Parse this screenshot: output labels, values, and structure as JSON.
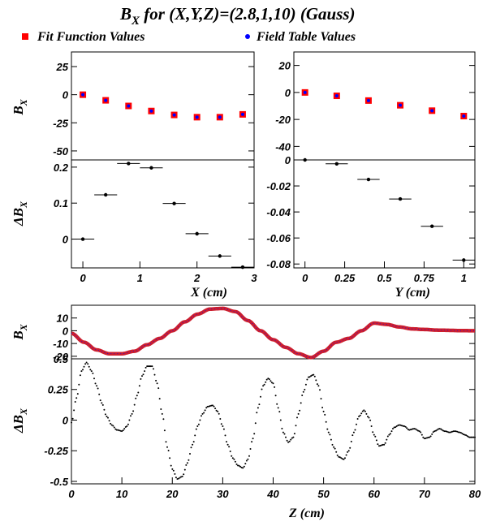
{
  "title": {
    "main": "B",
    "sub": "X",
    "rest": " for (X,Y,Z)=(2.8,1,10)  (Gauss)"
  },
  "legend": {
    "fit": "Fit Function Values",
    "table": "Field Table Values"
  },
  "colors": {
    "fit": "#ff0000",
    "table": "#0000ff",
    "curve": "#cc1f2f",
    "residual": "#000000"
  },
  "axis_text": {
    "bx": "B",
    "bx_sub": "X",
    "dbx": "ΔB",
    "dbx_sub": "X",
    "x": "X (cm)",
    "y": "Y (cm)",
    "z": "Z (cm)"
  },
  "chart_data": [
    {
      "panel": "x-scan field",
      "type": "scatter",
      "x": [
        0,
        0.4,
        0.8,
        1.2,
        1.6,
        2.0,
        2.4,
        2.8
      ],
      "series": [
        {
          "name": "Fit Function Values",
          "values": [
            0,
            -5,
            -10,
            -14.5,
            -18,
            -20,
            -20,
            -17.5
          ]
        },
        {
          "name": "Field Table Values",
          "values": [
            0,
            -5,
            -10,
            -14.5,
            -18,
            -20,
            -20,
            -17.5
          ]
        }
      ],
      "xlim": [
        -0.2,
        3.0
      ],
      "ylim": [
        -58,
        38
      ],
      "yticks": [
        "25",
        "0",
        "-25",
        "-50"
      ]
    },
    {
      "panel": "x-scan residual",
      "type": "scatter",
      "x": [
        0,
        0.4,
        0.8,
        1.2,
        1.6,
        2.0,
        2.4,
        2.8
      ],
      "values": [
        0,
        0.123,
        0.21,
        0.198,
        0.099,
        0.015,
        -0.047,
        -0.078
      ],
      "xerr": 0.2,
      "xlim": [
        -0.2,
        3.0
      ],
      "ylim": [
        -0.08,
        0.22
      ],
      "xticks": [
        "0",
        "1",
        "2",
        "3"
      ],
      "yticks": [
        "0.2",
        "0.1",
        "0"
      ]
    },
    {
      "panel": "y-scan field",
      "type": "scatter",
      "x": [
        0,
        0.2,
        0.4,
        0.6,
        0.8,
        1.0
      ],
      "series": [
        {
          "name": "Fit Function Values",
          "values": [
            0,
            -2.5,
            -6,
            -9.5,
            -13.5,
            -17.5
          ]
        },
        {
          "name": "Field Table Values",
          "values": [
            0,
            -2.5,
            -6,
            -9.5,
            -13.5,
            -17.5
          ]
        }
      ],
      "xlim": [
        -0.07,
        1.07
      ],
      "ylim": [
        -50,
        30
      ],
      "yticks": [
        "20",
        "0",
        "-20",
        "-40"
      ]
    },
    {
      "panel": "y-scan residual",
      "type": "scatter",
      "x": [
        0,
        0.2,
        0.4,
        0.6,
        0.8,
        1.0
      ],
      "values": [
        0,
        -0.003,
        -0.015,
        -0.03,
        -0.051,
        -0.077
      ],
      "xerr": 0.07,
      "xlim": [
        -0.07,
        1.07
      ],
      "ylim": [
        -0.083,
        0.0
      ],
      "xticks": [
        "0",
        "0.25",
        "0.5",
        "0.75",
        "1"
      ],
      "yticks": [
        "0",
        "-0.02",
        "-0.04",
        "-0.06",
        "-0.08"
      ]
    },
    {
      "panel": "z-scan field",
      "type": "line",
      "x": [
        0,
        2.5,
        5,
        7.5,
        10,
        12.5,
        15,
        17.5,
        20,
        22.5,
        25,
        27.5,
        30,
        32.5,
        35,
        37.5,
        40,
        42.5,
        45,
        47.5,
        50,
        52.5,
        55,
        57.5,
        60,
        62.5,
        65,
        67.5,
        70,
        72.5,
        75,
        77.5,
        80
      ],
      "values": [
        -2,
        -9,
        -15,
        -18,
        -18,
        -16,
        -11,
        -6,
        0,
        7,
        13,
        17,
        17.5,
        15,
        8,
        0,
        -7,
        -13,
        -18,
        -21,
        -16,
        -9,
        -6,
        0,
        6,
        5,
        3,
        1.5,
        1,
        0.5,
        0.3,
        0.1,
        0
      ],
      "xlim": [
        0,
        80
      ],
      "ylim": [
        -22,
        20
      ],
      "yticks": [
        "10",
        "0",
        "-10",
        "-20"
      ]
    },
    {
      "panel": "z-scan residual",
      "type": "scatter",
      "x": [
        0,
        1,
        2,
        3,
        4,
        5,
        6,
        7,
        8,
        9,
        10,
        11,
        12,
        13,
        14,
        15,
        16,
        17,
        18,
        19,
        20,
        21,
        22,
        23,
        24,
        25,
        26,
        27,
        28,
        29,
        30,
        31,
        32,
        33,
        34,
        35,
        36,
        37,
        38,
        39,
        40,
        41,
        42,
        43,
        44,
        45,
        46,
        47,
        48,
        49,
        50,
        51,
        52,
        53,
        54,
        55,
        56,
        57,
        58,
        59,
        60,
        61,
        62,
        63,
        64,
        65,
        66,
        67,
        68,
        69,
        70,
        71,
        72,
        73,
        74,
        75,
        76,
        77,
        78,
        79,
        80
      ],
      "values": [
        -0.02,
        0.18,
        0.4,
        0.47,
        0.4,
        0.28,
        0.14,
        0.03,
        -0.04,
        -0.08,
        -0.09,
        -0.05,
        0.05,
        0.2,
        0.36,
        0.44,
        0.44,
        0.3,
        0.05,
        -0.22,
        -0.4,
        -0.48,
        -0.46,
        -0.35,
        -0.2,
        -0.05,
        0.05,
        0.11,
        0.12,
        0.07,
        -0.05,
        -0.2,
        -0.31,
        -0.37,
        -0.39,
        -0.32,
        -0.15,
        0.1,
        0.28,
        0.34,
        0.3,
        0.1,
        -0.1,
        -0.18,
        -0.14,
        0.05,
        0.23,
        0.35,
        0.37,
        0.28,
        0.07,
        -0.1,
        -0.22,
        -0.3,
        -0.32,
        -0.25,
        -0.1,
        0.03,
        0.08,
        0.02,
        -0.12,
        -0.21,
        -0.2,
        -0.12,
        -0.06,
        -0.04,
        -0.05,
        -0.08,
        -0.07,
        -0.09,
        -0.15,
        -0.14,
        -0.09,
        -0.07,
        -0.09,
        -0.1,
        -0.09,
        -0.1,
        -0.12,
        -0.14,
        -0.14
      ],
      "xlim": [
        0,
        80
      ],
      "ylim": [
        -0.52,
        0.5
      ],
      "xticks": [
        "0",
        "10",
        "20",
        "30",
        "40",
        "50",
        "60",
        "70",
        "80"
      ],
      "yticks": [
        "0.5",
        "0.25",
        "0",
        "-0.25",
        "-0.5"
      ]
    }
  ]
}
